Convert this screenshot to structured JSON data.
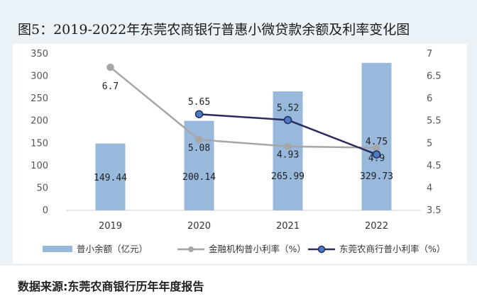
{
  "title": "图5：2019-2022年东莞农商银行普惠小微贷款余额及利率变化图",
  "source": "数据来源:东莞农商银行历年年度报告",
  "chart_data": {
    "type": "bar",
    "categories": [
      "2019",
      "2020",
      "2021",
      "2022"
    ],
    "ylim": [
      0,
      350
    ],
    "yticks": [
      0,
      50,
      100,
      150,
      200,
      250,
      300,
      350
    ],
    "y2lim": [
      3.5,
      7
    ],
    "y2ticks": [
      "3.5",
      "4",
      "4.5",
      "5",
      "5.5",
      "6",
      "6.5",
      "7"
    ],
    "grid": false,
    "legend_position": "bottom",
    "series": [
      {
        "name": "普小余额（亿元）",
        "type": "bar",
        "axis": "left",
        "color": "#98b8dc",
        "values": [
          149.44,
          200.14,
          265.99,
          329.73
        ],
        "labels": [
          "149.44",
          "200.14",
          "265.99",
          "329.73"
        ]
      },
      {
        "name": "金融机构普小利率（%）",
        "type": "line",
        "axis": "right",
        "color": "#a6a6a6",
        "values": [
          6.7,
          5.08,
          4.93,
          4.9
        ],
        "labels": [
          "6.7",
          "5.08",
          "4.93",
          "4.9"
        ]
      },
      {
        "name": "东莞农商行普小利率（%）",
        "type": "line",
        "axis": "right",
        "color": "#2a2d5c",
        "marker_fill": "#4a7bc4",
        "values": [
          null,
          5.65,
          5.52,
          4.75
        ],
        "labels": [
          "",
          "5.65",
          "5.52",
          "4.75"
        ]
      }
    ]
  }
}
